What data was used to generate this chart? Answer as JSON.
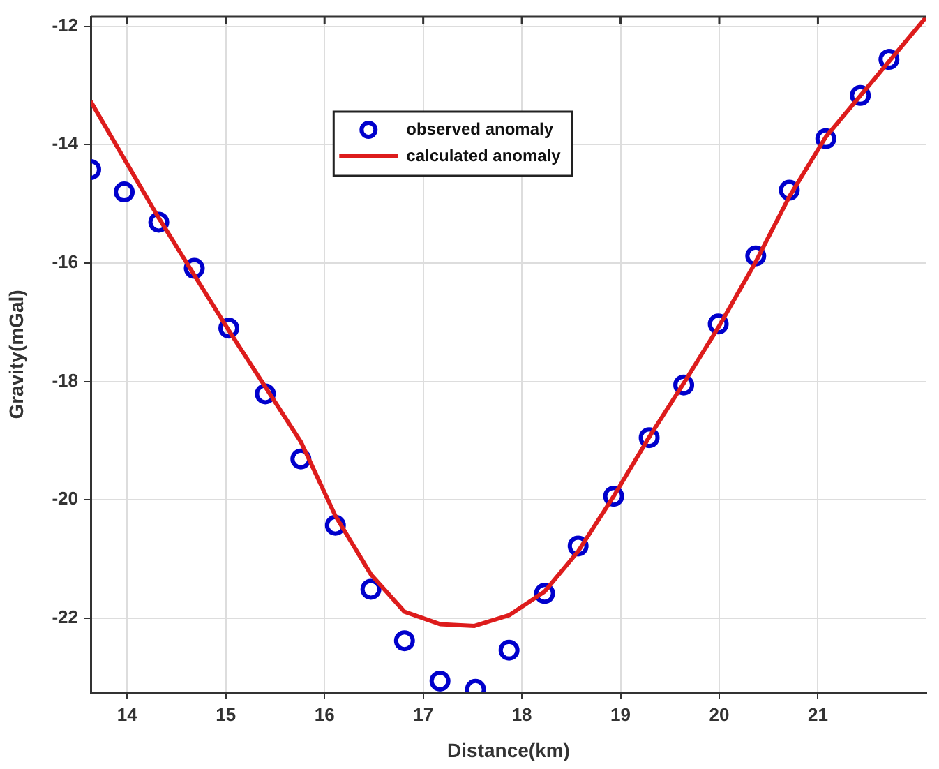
{
  "chart_data": {
    "type": "scatter",
    "xlabel": "Distance(km)",
    "ylabel": "Gravity(mGal)",
    "xlim": [
      13.63,
      22.1
    ],
    "ylim": [
      -23.25,
      -11.84
    ],
    "xticks": [
      14,
      15,
      16,
      17,
      18,
      19,
      20,
      21
    ],
    "yticks": [
      -22,
      -20,
      -18,
      -16,
      -14,
      -12
    ],
    "grid": true,
    "legend": "top",
    "series": [
      {
        "name": "observed anomaly",
        "marker": "circle",
        "color": "#0000cc",
        "x": [
          13.63,
          13.97,
          14.32,
          14.68,
          15.03,
          15.4,
          15.76,
          16.11,
          16.47,
          16.81,
          17.17,
          17.53,
          17.87,
          18.23,
          18.57,
          18.93,
          19.29,
          19.64,
          19.99,
          20.37,
          20.71,
          21.08,
          21.43,
          21.72
        ],
        "values": [
          -14.42,
          -14.8,
          -15.31,
          -16.09,
          -17.1,
          -18.21,
          -19.31,
          -20.43,
          -21.51,
          -22.38,
          -23.06,
          -23.2,
          -22.54,
          -21.58,
          -20.78,
          -19.94,
          -18.95,
          -18.06,
          -17.03,
          -15.88,
          -14.77,
          -13.9,
          -13.17,
          -12.56
        ]
      },
      {
        "name": "calculated anomaly",
        "type": "line",
        "marker": "none",
        "line_style": "solid",
        "color": "#dd1c1c",
        "x": [
          13.63,
          14.32,
          15.03,
          15.76,
          16.11,
          16.47,
          16.81,
          17.17,
          17.52,
          17.87,
          18.23,
          18.57,
          18.93,
          19.29,
          19.64,
          19.99,
          20.37,
          20.71,
          21.08,
          22.1
        ],
        "values": [
          -13.27,
          -15.24,
          -17.14,
          -19.02,
          -20.27,
          -21.26,
          -21.89,
          -22.1,
          -22.13,
          -21.95,
          -21.55,
          -20.87,
          -19.94,
          -18.94,
          -18.03,
          -17.09,
          -15.98,
          -14.88,
          -13.87,
          -11.84
        ]
      }
    ]
  }
}
